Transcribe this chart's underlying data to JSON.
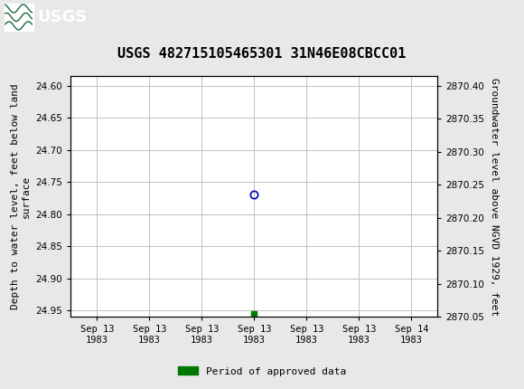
{
  "title": "USGS 482715105465301 31N46E08CBCC01",
  "ylabel_left": "Depth to water level, feet below land\nsurface",
  "ylabel_right": "Groundwater level above NGVD 1929, feet",
  "ylim_left": [
    24.96,
    24.585
  ],
  "ylim_right": [
    2870.06,
    2870.415
  ],
  "yticks_left": [
    24.6,
    24.65,
    24.7,
    24.75,
    24.8,
    24.85,
    24.9,
    24.95
  ],
  "yticks_right": [
    2870.4,
    2870.35,
    2870.3,
    2870.25,
    2870.2,
    2870.15,
    2870.1,
    2870.05
  ],
  "xtick_labels": [
    "Sep 13\n1983",
    "Sep 13\n1983",
    "Sep 13\n1983",
    "Sep 13\n1983",
    "Sep 13\n1983",
    "Sep 13\n1983",
    "Sep 14\n1983"
  ],
  "xtick_positions": [
    0,
    1,
    2,
    3,
    4,
    5,
    6
  ],
  "data_point_x": 3.0,
  "data_point_y": 24.77,
  "data_point_color": "#0000bb",
  "green_bar_x": 3.0,
  "green_bar_y": 24.955,
  "green_bar_color": "#007700",
  "legend_label": "Period of approved data",
  "legend_color": "#007700",
  "background_color": "#e8e8e8",
  "plot_bg_color": "#ffffff",
  "header_color": "#1a6b3c",
  "grid_color": "#c0c0c0",
  "title_fontsize": 11,
  "axis_label_fontsize": 8,
  "tick_fontsize": 7.5,
  "legend_fontsize": 8
}
